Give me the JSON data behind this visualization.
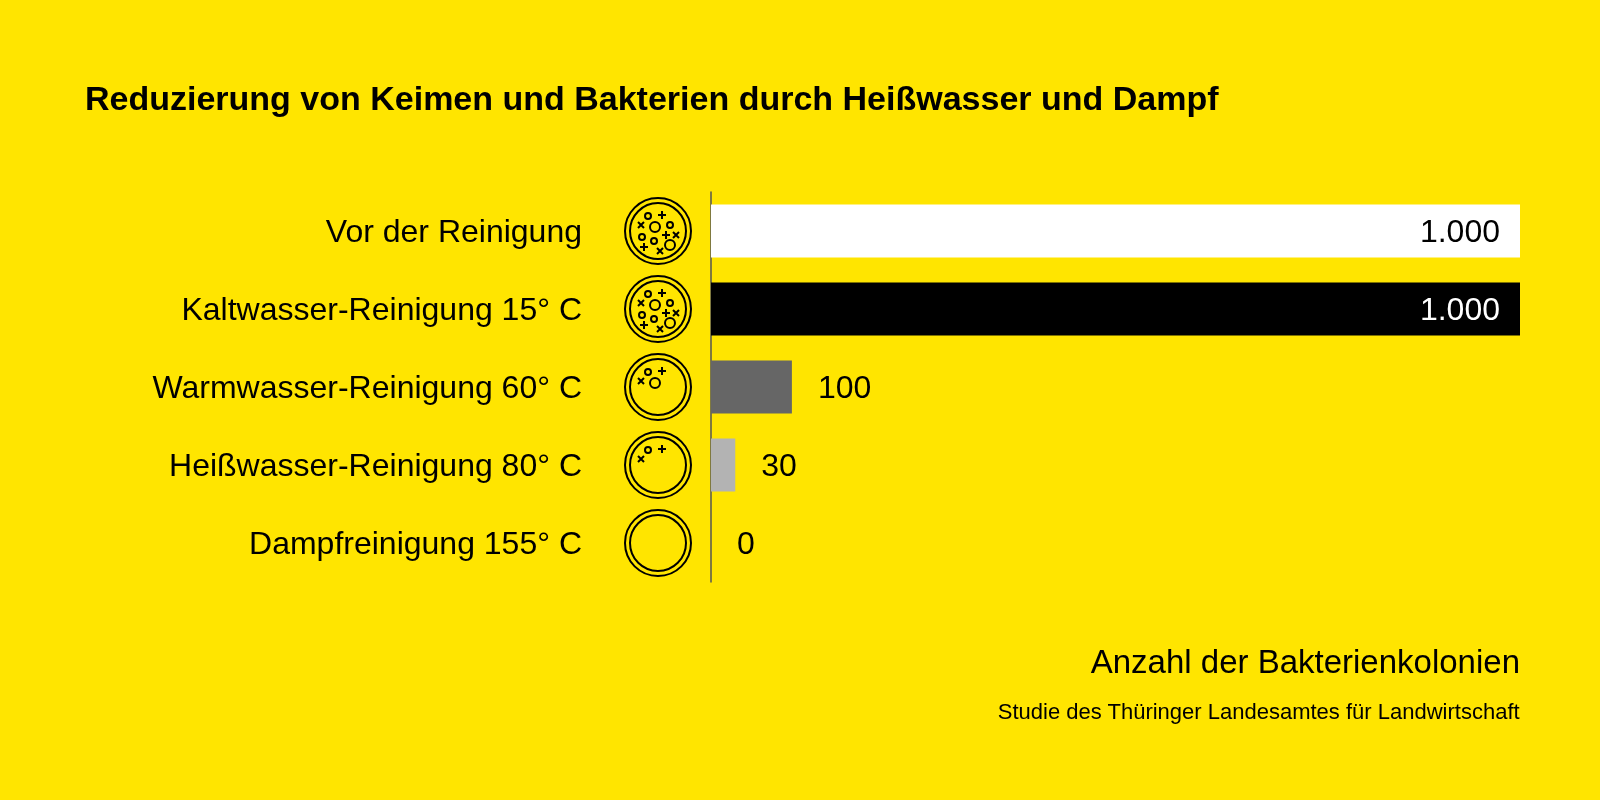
{
  "chart_data": {
    "type": "bar",
    "orientation": "horizontal",
    "title": "Reduzierung von Keimen und Bakterien durch Heißwasser und Dampf",
    "categories": [
      "Vor der Reinigung",
      "Kaltwasser-Reinigung 15° C",
      "Warmwasser-Reinigung 60° C",
      "Heißwasser-Reinigung 80° C",
      "Dampfreinigung 155° C"
    ],
    "values": [
      1000,
      1000,
      100,
      30,
      0
    ],
    "colors": [
      "#ffffff",
      "#000000",
      "#666666",
      "#b3b3b3",
      "#b3b3b3"
    ],
    "value_labels": [
      "1.000",
      "1.000",
      "100",
      "30",
      "0"
    ],
    "xlim": [
      0,
      1000
    ],
    "xlabel": "Anzahl der Bakterienkolonien",
    "annotations": [
      "Studie des Thüringer Landesamtes für Landwirtschaft"
    ]
  }
}
